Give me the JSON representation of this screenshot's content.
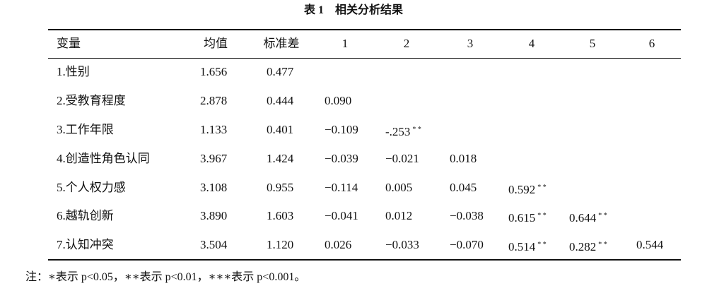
{
  "title": "表 1　相关分析结果",
  "table": {
    "header": [
      "变量",
      "均值",
      "标准差",
      "1",
      "2",
      "3",
      "4",
      "5",
      "6"
    ],
    "rows": [
      [
        "1.性别",
        "1.656",
        "0.477"
      ],
      [
        "2.受教育程度",
        "2.878",
        "0.444",
        "0.090"
      ],
      [
        "3.工作年限",
        "1.133",
        "0.401",
        "−0.109",
        {
          "value": "-.253",
          "sup": "* *"
        }
      ],
      [
        "4.创造性角色认同",
        "3.967",
        "1.424",
        "−0.039",
        "−0.021",
        "0.018"
      ],
      [
        "5.个人权力感",
        "3.108",
        "0.955",
        "−0.114",
        "0.005",
        "0.045",
        {
          "value": "0.592",
          "sup": "* *"
        }
      ],
      [
        "6.越轨创新",
        "3.890",
        "1.603",
        "−0.041",
        "0.012",
        "−0.038",
        {
          "value": "0.615",
          "sup": "* *"
        },
        {
          "value": "0.644",
          "sup": "* *"
        }
      ],
      [
        "7.认知冲突",
        "3.504",
        "1.120",
        "0.026",
        "−0.033",
        "−0.070",
        {
          "value": "0.514",
          "sup": "* *"
        },
        {
          "value": "0.282",
          "sup": "* *"
        },
        "0.544"
      ]
    ]
  },
  "note": "注：∗表示 p<0.05，∗∗表示 p<0.01，∗∗∗表示 p<0.001。"
}
